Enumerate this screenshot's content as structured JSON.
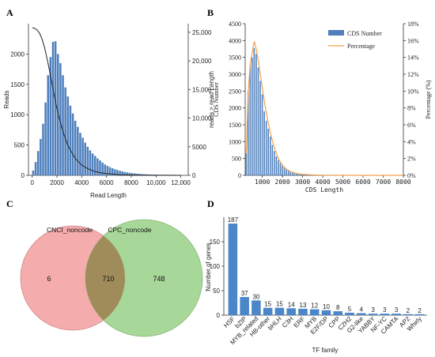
{
  "panels": {
    "A": "A",
    "B": "B",
    "C": "C",
    "D": "D"
  },
  "colors": {
    "bar_blue": "#4f80bd",
    "orange": "#f0a04c",
    "venn_left": "#f4a3a3",
    "venn_right": "#9fd38f",
    "d_bar": "#4a86c8"
  },
  "chart_data": [
    {
      "panel": "A",
      "type": "bar",
      "xlabel": "Read Length",
      "ylabel": "Reads",
      "y2label": "reads > read Length",
      "xlim": [
        -300,
        12600
      ],
      "ylim": [
        0,
        2500
      ],
      "y2lim": [
        0,
        26500
      ],
      "xticks": [
        0,
        2000,
        4000,
        6000,
        8000,
        10000,
        12000
      ],
      "xtick_labels": [
        "0",
        "2000",
        "4000",
        "6000",
        "8000",
        "10,000",
        "12,000"
      ],
      "yticks": [
        0,
        500,
        1000,
        1500,
        2000
      ],
      "y2ticks": [
        0,
        5000,
        10000,
        15000,
        20000,
        25000
      ],
      "y2tick_labels": [
        "0",
        "5000",
        "10,000",
        "15,000",
        "20,000",
        "25,000"
      ],
      "bin_width": 200,
      "x": [
        100,
        300,
        500,
        700,
        900,
        1100,
        1300,
        1500,
        1700,
        1900,
        2100,
        2300,
        2500,
        2700,
        2900,
        3100,
        3300,
        3500,
        3700,
        3900,
        4100,
        4300,
        4500,
        4700,
        4900,
        5100,
        5300,
        5500,
        5700,
        5900,
        6100,
        6300,
        6500,
        6700,
        6900,
        7100,
        7300,
        7500,
        7700,
        7900,
        8100,
        8300,
        8500,
        8700,
        8900,
        9100,
        9300,
        9500,
        9700,
        9900,
        10100,
        10300,
        10500,
        10700,
        10900,
        11100,
        11300,
        11500,
        11700,
        11900
      ],
      "values": [
        80,
        220,
        400,
        600,
        850,
        1200,
        1650,
        1950,
        2200,
        2210,
        2000,
        1850,
        1650,
        1450,
        1300,
        1150,
        1020,
        900,
        800,
        700,
        620,
        540,
        470,
        410,
        360,
        320,
        280,
        245,
        210,
        180,
        155,
        135,
        118,
        100,
        88,
        76,
        65,
        56,
        48,
        42,
        36,
        31,
        27,
        23,
        20,
        17,
        15,
        13,
        11,
        10,
        9,
        8,
        7,
        6,
        5,
        5,
        4,
        4,
        3,
        3
      ],
      "series": [
        {
          "name": "reads > read Length",
          "x": [
            0,
            200,
            400,
            600,
            800,
            1000,
            1200,
            1400,
            1600,
            1800,
            2000,
            2200,
            2400,
            2600,
            2800,
            3000,
            3500,
            4000,
            4500,
            5000,
            5500,
            6000,
            7000,
            8000,
            9000,
            10000,
            11000,
            12000
          ],
          "values": [
            25800,
            25700,
            25400,
            24800,
            23800,
            22300,
            20400,
            18300,
            16000,
            13800,
            11700,
            9900,
            8300,
            6900,
            5700,
            4700,
            2900,
            1800,
            1150,
            720,
            460,
            300,
            130,
            60,
            30,
            15,
            8,
            4
          ]
        }
      ]
    },
    {
      "panel": "B",
      "type": "bar",
      "xlabel": "CDS Length",
      "ylabel": "CDS Number",
      "y2label": "Percentage (%)",
      "xlim": [
        150,
        8000
      ],
      "ylim": [
        0,
        4500
      ],
      "y2lim": [
        0,
        18
      ],
      "xticks": [
        1000,
        2000,
        3000,
        4000,
        5000,
        6000,
        7000,
        8000
      ],
      "yticks": [
        0,
        500,
        1000,
        1500,
        2000,
        2500,
        3000,
        3500,
        4000,
        4500
      ],
      "y2ticks": [
        0,
        2,
        4,
        6,
        8,
        10,
        12,
        14,
        16,
        18
      ],
      "y2tick_labels": [
        "0%",
        "2%",
        "4%",
        "6%",
        "8%",
        "10%",
        "12%",
        "14%",
        "16%",
        "18%"
      ],
      "legend": [
        "CDS Number",
        "Percentage"
      ],
      "legend_placement": "top-right",
      "bin_width": 100,
      "x": [
        200,
        300,
        400,
        500,
        600,
        700,
        800,
        900,
        1000,
        1100,
        1200,
        1300,
        1400,
        1500,
        1600,
        1700,
        1800,
        1900,
        2000,
        2100,
        2200,
        2300,
        2400,
        2500,
        2600,
        2700,
        2800,
        2900,
        3000,
        3100,
        3200,
        3300,
        3400,
        3500
      ],
      "values": [
        650,
        2500,
        3250,
        3500,
        3780,
        3600,
        3200,
        2800,
        2400,
        1900,
        1620,
        1380,
        1150,
        900,
        720,
        560,
        450,
        360,
        280,
        220,
        170,
        130,
        100,
        80,
        60,
        45,
        35,
        26,
        20,
        14,
        10,
        7,
        5,
        3
      ],
      "series": [
        {
          "name": "Percentage",
          "x": [
            200,
            300,
            400,
            500,
            600,
            700,
            800,
            900,
            1000,
            1100,
            1200,
            1300,
            1400,
            1500,
            1600,
            1700,
            1800,
            1900,
            2000,
            2200,
            2400,
            2600,
            2800,
            3000,
            3500,
            4000,
            5000,
            6000,
            7000,
            8000
          ],
          "values": [
            2.6,
            9.8,
            13.2,
            14.6,
            15.9,
            15.0,
            13.6,
            12.0,
            10.4,
            8.8,
            7.4,
            6.2,
            5.1,
            4.1,
            3.3,
            2.6,
            2.0,
            1.6,
            1.2,
            0.75,
            0.45,
            0.28,
            0.18,
            0.12,
            0.05,
            0.02,
            0.01,
            0.0,
            0.0,
            0.0
          ]
        }
      ]
    },
    {
      "panel": "D",
      "type": "bar",
      "xlabel": "TF family",
      "ylabel": "Number of genes",
      "ylim": [
        0,
        200
      ],
      "categories": [
        "HSF",
        "bZIP",
        "MYB_related",
        "HB-other",
        "bHLH",
        "C3H",
        "ERF",
        "MYB",
        "E2F/DP",
        "CPP",
        "C2H2",
        "G2-like",
        "YABBY",
        "NF-YC",
        "CAMTA",
        "AP2",
        "Whirly"
      ],
      "values": [
        187,
        37,
        30,
        15,
        15,
        14,
        13,
        12,
        10,
        8,
        5,
        4,
        3,
        3,
        3,
        2,
        2
      ]
    }
  ],
  "venn": {
    "left_label": "CNCI_noncode",
    "right_label": "CPC_noncode",
    "left_only": "6",
    "intersection": "710",
    "right_only": "748"
  }
}
